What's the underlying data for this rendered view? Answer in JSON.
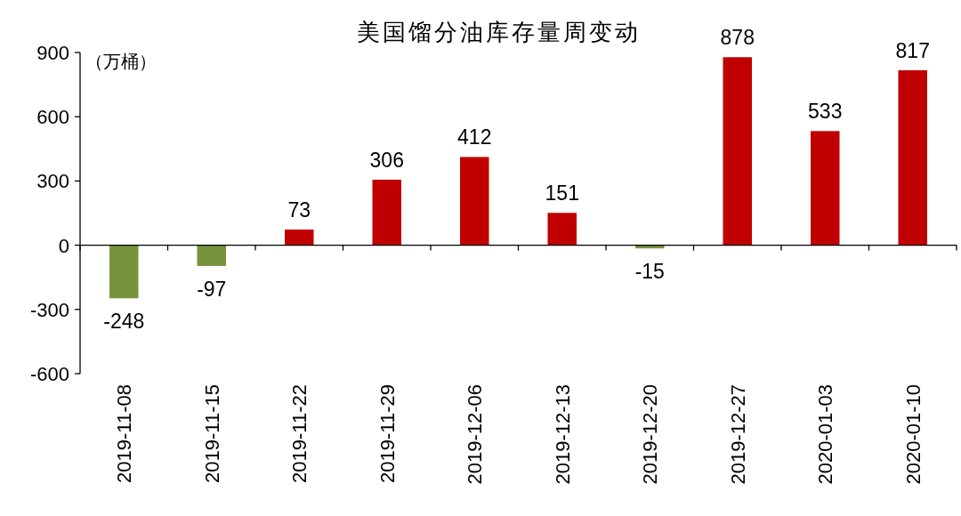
{
  "chart_data": {
    "type": "bar",
    "title": "美国馏分油库存量周变动",
    "ylabel": "（万桶）",
    "categories": [
      "2019-11-08",
      "2019-11-15",
      "2019-11-22",
      "2019-11-29",
      "2019-12-06",
      "2019-12-13",
      "2019-12-20",
      "2019-12-27",
      "2020-01-03",
      "2020-01-10"
    ],
    "values": [
      -248,
      -97,
      73,
      306,
      412,
      151,
      -15,
      878,
      533,
      817
    ],
    "colors": [
      "#77933c",
      "#77933c",
      "#c00000",
      "#c00000",
      "#c00000",
      "#c00000",
      "#77933c",
      "#c00000",
      "#c00000",
      "#c00000"
    ],
    "ylim": [
      -600,
      900
    ],
    "yticks": [
      -600,
      -300,
      0,
      300,
      600,
      900
    ],
    "data_labels": true
  }
}
